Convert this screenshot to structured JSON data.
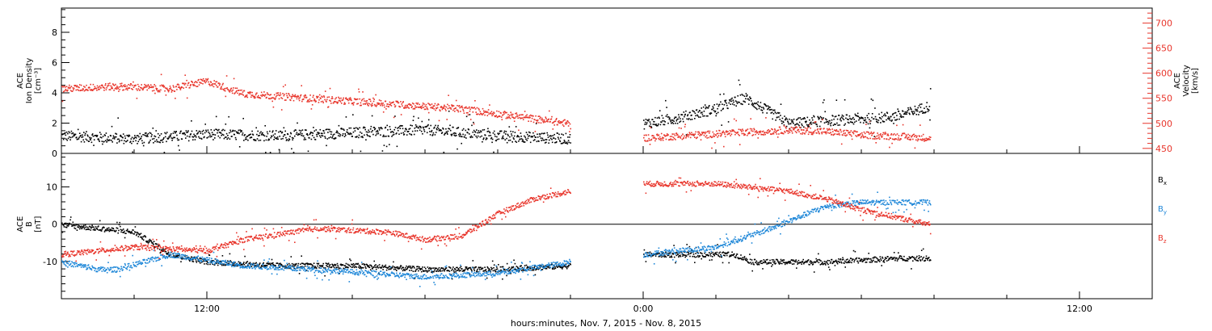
{
  "chart_data": [
    {
      "type": "scatter",
      "title": "",
      "ylabel": "ACE\nIon Density\n[cm-3]",
      "ylabel_lines": [
        "ACE",
        "Ion Density",
        "[cm⁻³]"
      ],
      "ylim": [
        0,
        9.6
      ],
      "y_ticks": [
        "0",
        "2",
        "4",
        "6",
        "8"
      ],
      "y2label_lines": [
        "ACE",
        "Velocity",
        "[km/s]"
      ],
      "y2lim": [
        440,
        730
      ],
      "y2_ticks": [
        "450",
        "500",
        "550",
        "600",
        "650",
        "700"
      ],
      "xlim_hours": [
        -16,
        14
      ],
      "series": [
        {
          "axis": "left",
          "color": "#000000",
          "segments": [
            {
              "x": [
                -16.0,
                -14.0,
                -12.0,
                -10.0,
                -8.0,
                -6.0,
                -4.0,
                -2.0
              ],
              "y": [
                1.2,
                1.0,
                1.3,
                1.2,
                1.4,
                1.6,
                1.2,
                1.0
              ]
            },
            {
              "x": [
                0.0,
                1.0,
                2.0,
                2.8,
                4.0,
                5.0,
                6.0,
                7.0,
                7.9
              ],
              "y": [
                2.0,
                2.4,
                3.0,
                3.7,
                2.0,
                2.2,
                2.3,
                2.5,
                3.2
              ]
            }
          ]
        },
        {
          "axis": "right",
          "color": "#e8352b",
          "segments": [
            {
              "x": [
                -16.0,
                -14.5,
                -13.0,
                -12.0,
                -11.0,
                -9.0,
                -7.0,
                -5.0,
                -3.0,
                -2.0
              ],
              "y": [
                570,
                575,
                570,
                585,
                560,
                550,
                540,
                530,
                510,
                500
              ]
            },
            {
              "x": [
                0.0,
                2.0,
                4.0,
                5.0,
                6.0,
                7.0,
                7.9
              ],
              "y": [
                472,
                480,
                488,
                485,
                478,
                475,
                472
              ]
            }
          ]
        }
      ]
    },
    {
      "type": "scatter",
      "title": "",
      "ylabel": "ACE\nB\n[nT]",
      "ylabel_lines": [
        "ACE",
        "B",
        "[nT]"
      ],
      "ylim": [
        -20,
        19
      ],
      "y_ticks": [
        "-10",
        "0",
        "10"
      ],
      "zero_line": true,
      "x_ticks": [
        "12:00",
        "0:00",
        "12:00"
      ],
      "x_tick_hours": [
        -12,
        0,
        12
      ],
      "xlim_hours": [
        -16,
        14
      ],
      "xlabel": "hours:minutes, Nov.  7, 2015 - Nov.  8, 2015",
      "series": [
        {
          "name": "Bx",
          "legend": "Bₓ",
          "color": "#000000",
          "segments": [
            {
              "x": [
                -16.0,
                -14.0,
                -13.0,
                -12.0,
                -10.0,
                -8.0,
                -6.0,
                -4.0,
                -2.0
              ],
              "y": [
                0,
                -2,
                -8,
                -10,
                -11,
                -11,
                -12,
                -12,
                -11
              ]
            },
            {
              "x": [
                0.0,
                2.5,
                3.0,
                5.0,
                7.0,
                7.9
              ],
              "y": [
                -8,
                -8,
                -10,
                -10,
                -9,
                -9
              ]
            }
          ]
        },
        {
          "name": "By",
          "legend": "Bᵧ",
          "color": "#1e87d8",
          "segments": [
            {
              "x": [
                -16.0,
                -15.0,
                -14.5,
                -13.0,
                -11.0,
                -9.0,
                -6.0,
                -4.0,
                -2.0
              ],
              "y": [
                -10,
                -12,
                -12,
                -8,
                -11,
                -12,
                -14,
                -13,
                -10
              ]
            },
            {
              "x": [
                0.0,
                2.0,
                3.5,
                5.0,
                6.0,
                7.9
              ],
              "y": [
                -8,
                -6,
                -1,
                5,
                6,
                6
              ]
            }
          ]
        },
        {
          "name": "Bz",
          "legend": "B_z",
          "color": "#e8352b",
          "segments": [
            {
              "x": [
                -16.0,
                -14.0,
                -12.0,
                -11.0,
                -9.0,
                -7.0,
                -6.0,
                -5.0,
                -4.0,
                -3.0,
                -2.0
              ],
              "y": [
                -8,
                -6,
                -7,
                -4,
                -1,
                -2,
                -4,
                -3,
                3,
                7,
                9
              ]
            },
            {
              "x": [
                0.0,
                2.0,
                3.0,
                4.0,
                5.0,
                6.0,
                7.9
              ],
              "y": [
                11,
                11,
                10,
                9,
                7,
                4,
                0
              ]
            }
          ]
        }
      ]
    }
  ]
}
